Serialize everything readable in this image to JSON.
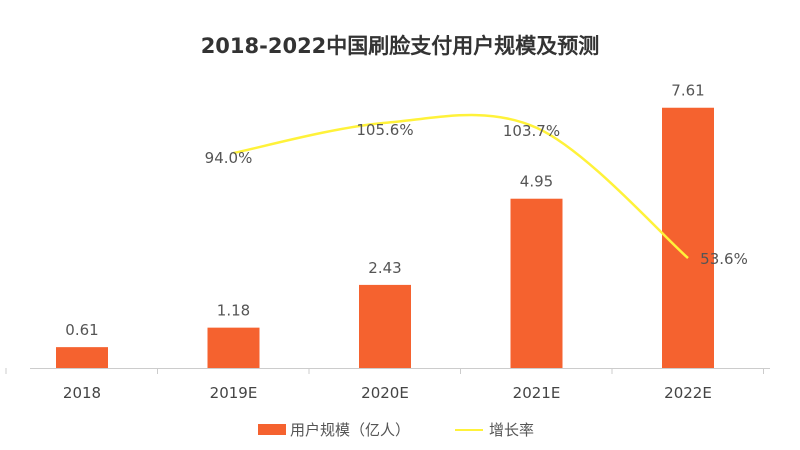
{
  "chart_data": {
    "type": "bar",
    "title": "2018-2022中国刷脸支付用户规模及预测",
    "categories": [
      "2018",
      "2019E",
      "2020E",
      "2021E",
      "2022E"
    ],
    "series": [
      {
        "name": "用户规模（亿人）",
        "type": "bar",
        "values": [
          0.61,
          1.18,
          2.43,
          4.95,
          7.61
        ],
        "labels": [
          "0.61",
          "1.18",
          "2.43",
          "4.95",
          "7.61"
        ],
        "color": "#F5622F"
      },
      {
        "name": "增长率",
        "type": "line",
        "values": [
          null,
          94.0,
          105.6,
          103.7,
          53.6
        ],
        "labels": [
          "",
          "94.0%",
          "105.6%",
          "103.7%",
          "53.6%"
        ],
        "color": "#FFF23A"
      }
    ],
    "legend": "bottom",
    "grid": false
  }
}
